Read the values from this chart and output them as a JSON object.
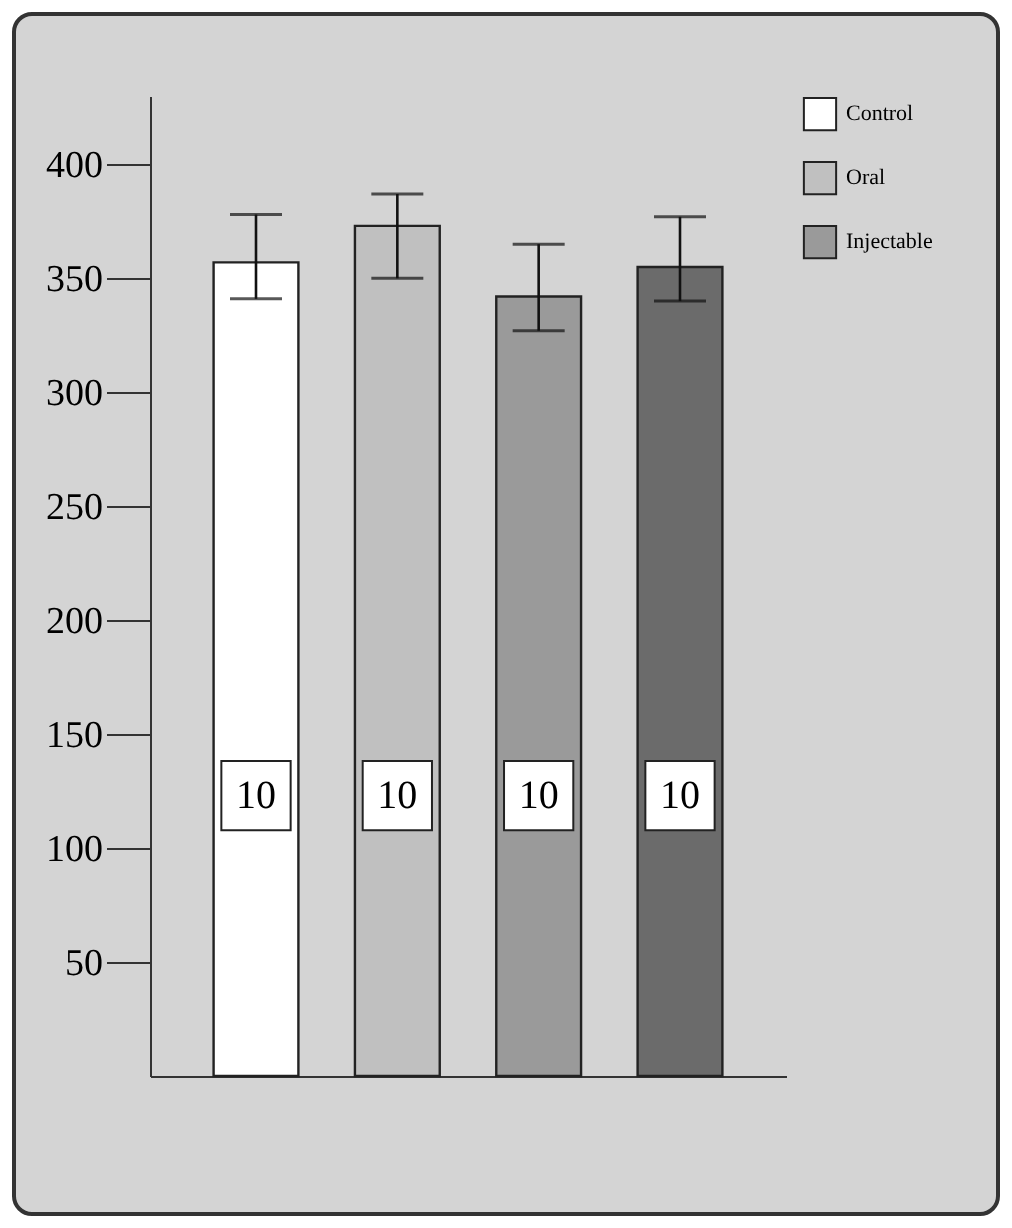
{
  "chart_data": {
    "type": "bar",
    "categories": [
      null,
      null,
      null,
      null
    ],
    "series": [
      {
        "name": "Control",
        "color": "#ffffff",
        "values": [
          357,
          null,
          null,
          null
        ],
        "errors": [
          [
            341,
            378
          ],
          null,
          null,
          null
        ]
      },
      {
        "name": "Oral",
        "color": "#c0c0c0",
        "values": [
          null,
          373,
          null,
          null
        ],
        "errors": [
          null,
          [
            350,
            387
          ],
          null,
          null
        ]
      },
      {
        "name": "Injectable",
        "color": "#9a9a9a",
        "values": [
          null,
          null,
          342,
          null
        ],
        "errors": [
          null,
          null,
          [
            327,
            365
          ],
          null
        ]
      },
      {
        "color": "#6b6b6b",
        "values": [
          null,
          null,
          null,
          355
        ],
        "errors": [
          null,
          null,
          null,
          [
            340,
            377
          ]
        ]
      }
    ],
    "ylim": [
      0,
      430
    ],
    "yticks": [
      50,
      100,
      150,
      200,
      250,
      300,
      350,
      400
    ],
    "grid": false,
    "legend": "top right",
    "tick_labels": "y",
    "annotations": [
      {
        "text": "10",
        "y": 123
      },
      {
        "text": "10",
        "y": 123
      },
      {
        "text": "10",
        "y": 123
      },
      {
        "text": "10",
        "y": 123
      }
    ]
  }
}
